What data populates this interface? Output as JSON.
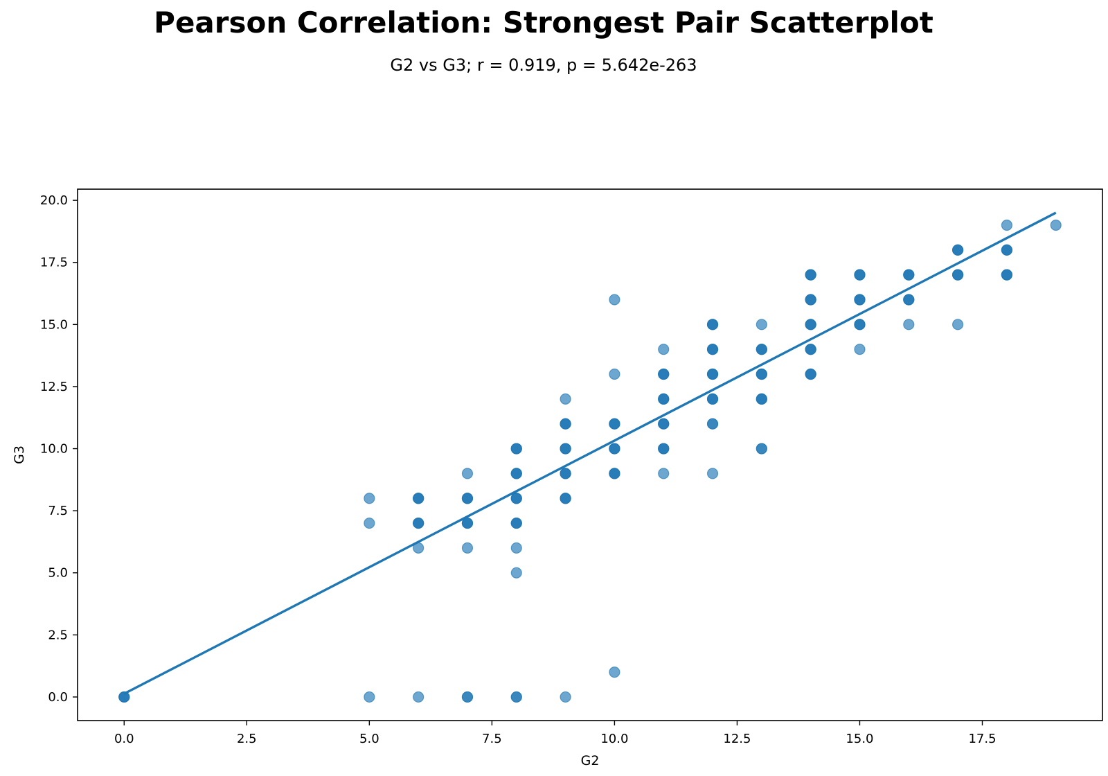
{
  "chart_data": {
    "type": "scatter",
    "title": "Pearson Correlation: Strongest Pair Scatterplot",
    "subtitle": "G2 vs G3; r = 0.919, p = 5.642e-263",
    "xlabel": "G2",
    "ylabel": "G3",
    "xlim": [
      -0.95,
      19.95
    ],
    "ylim": [
      -0.95,
      20.45
    ],
    "xticks": [
      0.0,
      2.5,
      5.0,
      7.5,
      10.0,
      12.5,
      15.0,
      17.5
    ],
    "xtick_labels": [
      "0.0",
      "2.5",
      "5.0",
      "7.5",
      "10.0",
      "12.5",
      "15.0",
      "17.5"
    ],
    "yticks": [
      0.0,
      2.5,
      5.0,
      7.5,
      10.0,
      12.5,
      15.0,
      17.5,
      20.0
    ],
    "ytick_labels": [
      "0.0",
      "2.5",
      "5.0",
      "7.5",
      "10.0",
      "12.5",
      "15.0",
      "17.5",
      "20.0"
    ],
    "grid": false,
    "color": "#1f77b4",
    "points": [
      {
        "x": 0,
        "y": 0,
        "n": 3
      },
      {
        "x": 5,
        "y": 0,
        "n": 1
      },
      {
        "x": 5,
        "y": 7,
        "n": 1
      },
      {
        "x": 5,
        "y": 8,
        "n": 1
      },
      {
        "x": 6,
        "y": 0,
        "n": 1
      },
      {
        "x": 6,
        "y": 6,
        "n": 1
      },
      {
        "x": 6,
        "y": 7,
        "n": 3
      },
      {
        "x": 6,
        "y": 8,
        "n": 3
      },
      {
        "x": 7,
        "y": 0,
        "n": 2
      },
      {
        "x": 7,
        "y": 6,
        "n": 1
      },
      {
        "x": 7,
        "y": 7,
        "n": 3
      },
      {
        "x": 7,
        "y": 8,
        "n": 3
      },
      {
        "x": 7,
        "y": 9,
        "n": 1
      },
      {
        "x": 8,
        "y": 0,
        "n": 2
      },
      {
        "x": 8,
        "y": 5,
        "n": 1
      },
      {
        "x": 8,
        "y": 6,
        "n": 1
      },
      {
        "x": 8,
        "y": 7,
        "n": 3
      },
      {
        "x": 8,
        "y": 8,
        "n": 3
      },
      {
        "x": 8,
        "y": 9,
        "n": 3
      },
      {
        "x": 8,
        "y": 10,
        "n": 3
      },
      {
        "x": 9,
        "y": 0,
        "n": 1
      },
      {
        "x": 9,
        "y": 8,
        "n": 3
      },
      {
        "x": 9,
        "y": 9,
        "n": 3
      },
      {
        "x": 9,
        "y": 10,
        "n": 3
      },
      {
        "x": 9,
        "y": 11,
        "n": 3
      },
      {
        "x": 9,
        "y": 12,
        "n": 1
      },
      {
        "x": 10,
        "y": 1,
        "n": 1
      },
      {
        "x": 10,
        "y": 9,
        "n": 3
      },
      {
        "x": 10,
        "y": 10,
        "n": 3
      },
      {
        "x": 10,
        "y": 11,
        "n": 3
      },
      {
        "x": 10,
        "y": 13,
        "n": 1
      },
      {
        "x": 10,
        "y": 16,
        "n": 1
      },
      {
        "x": 11,
        "y": 9,
        "n": 1
      },
      {
        "x": 11,
        "y": 10,
        "n": 3
      },
      {
        "x": 11,
        "y": 11,
        "n": 3
      },
      {
        "x": 11,
        "y": 12,
        "n": 3
      },
      {
        "x": 11,
        "y": 13,
        "n": 3
      },
      {
        "x": 11,
        "y": 14,
        "n": 1
      },
      {
        "x": 12,
        "y": 9,
        "n": 1
      },
      {
        "x": 12,
        "y": 11,
        "n": 2
      },
      {
        "x": 12,
        "y": 12,
        "n": 3
      },
      {
        "x": 12,
        "y": 13,
        "n": 3
      },
      {
        "x": 12,
        "y": 14,
        "n": 3
      },
      {
        "x": 12,
        "y": 15,
        "n": 3
      },
      {
        "x": 13,
        "y": 10,
        "n": 2
      },
      {
        "x": 13,
        "y": 12,
        "n": 3
      },
      {
        "x": 13,
        "y": 13,
        "n": 3
      },
      {
        "x": 13,
        "y": 14,
        "n": 3
      },
      {
        "x": 13,
        "y": 15,
        "n": 1
      },
      {
        "x": 14,
        "y": 13,
        "n": 3
      },
      {
        "x": 14,
        "y": 14,
        "n": 3
      },
      {
        "x": 14,
        "y": 15,
        "n": 3
      },
      {
        "x": 14,
        "y": 16,
        "n": 3
      },
      {
        "x": 14,
        "y": 17,
        "n": 3
      },
      {
        "x": 15,
        "y": 14,
        "n": 1
      },
      {
        "x": 15,
        "y": 15,
        "n": 3
      },
      {
        "x": 15,
        "y": 16,
        "n": 3
      },
      {
        "x": 15,
        "y": 17,
        "n": 3
      },
      {
        "x": 16,
        "y": 15,
        "n": 1
      },
      {
        "x": 16,
        "y": 16,
        "n": 3
      },
      {
        "x": 16,
        "y": 17,
        "n": 3
      },
      {
        "x": 17,
        "y": 15,
        "n": 1
      },
      {
        "x": 17,
        "y": 17,
        "n": 3
      },
      {
        "x": 17,
        "y": 18,
        "n": 3
      },
      {
        "x": 18,
        "y": 17,
        "n": 3
      },
      {
        "x": 18,
        "y": 18,
        "n": 3
      },
      {
        "x": 18,
        "y": 19,
        "n": 1
      },
      {
        "x": 19,
        "y": 19,
        "n": 1
      }
    ],
    "fit_line": {
      "x": [
        0,
        19
      ],
      "y": [
        0.13,
        19.5
      ]
    }
  }
}
